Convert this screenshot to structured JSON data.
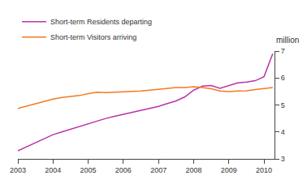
{
  "chart_data": {
    "type": "line",
    "x": [
      2003.0,
      2003.25,
      2003.5,
      2003.75,
      2004.0,
      2004.25,
      2004.5,
      2004.75,
      2005.0,
      2005.25,
      2005.5,
      2005.75,
      2006.0,
      2006.25,
      2006.5,
      2006.75,
      2007.0,
      2007.25,
      2007.5,
      2007.75,
      2008.0,
      2008.25,
      2008.5,
      2008.75,
      2009.0,
      2009.25,
      2009.5,
      2009.75,
      2010.0,
      2010.25
    ],
    "series": [
      {
        "name": "Short-term Residents departing",
        "color": "#bb33aa",
        "values": [
          3.3,
          3.45,
          3.6,
          3.75,
          3.9,
          4.0,
          4.1,
          4.2,
          4.3,
          4.42,
          4.5,
          4.58,
          4.65,
          4.73,
          4.8,
          4.88,
          4.95,
          5.05,
          5.15,
          5.3,
          5.55,
          5.7,
          5.72,
          5.62,
          5.72,
          5.82,
          5.85,
          5.9,
          6.05,
          6.9
        ]
      },
      {
        "name": "Short-term Visitors arriving",
        "color": "#f47920",
        "values": [
          4.87,
          4.96,
          5.05,
          5.14,
          5.22,
          5.28,
          5.32,
          5.35,
          5.42,
          5.47,
          5.46,
          5.47,
          5.48,
          5.5,
          5.52,
          5.55,
          5.58,
          5.62,
          5.65,
          5.65,
          5.68,
          5.65,
          5.6,
          5.52,
          5.5,
          5.52,
          5.53,
          5.57,
          5.62,
          5.65
        ]
      }
    ],
    "xlim": [
      2003,
      2010.3
    ],
    "ylim": [
      3.0,
      7.0
    ],
    "xticks": [
      2003,
      2004,
      2005,
      2006,
      2007,
      2008,
      2009,
      2010
    ],
    "yticks": [
      3,
      4,
      5,
      6,
      7
    ],
    "ylabel": "million",
    "grid": false,
    "legend": "upper left"
  }
}
